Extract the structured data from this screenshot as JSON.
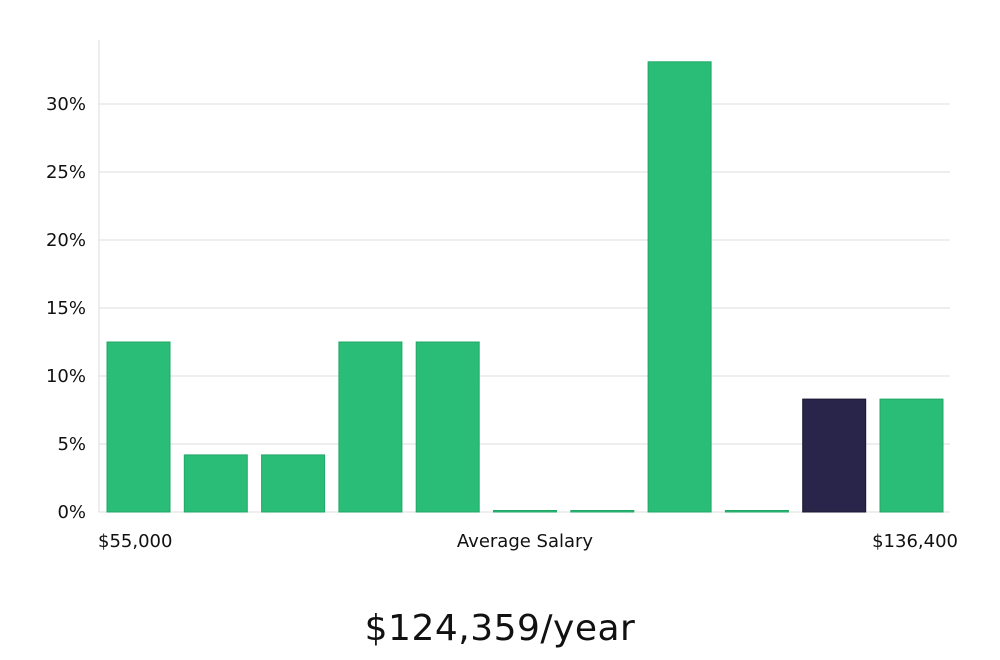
{
  "chart_data": {
    "type": "bar",
    "title": "",
    "xlabel": "Average Salary",
    "ylabel": "",
    "x_start_label": "$55,000",
    "x_end_label": "$136,400",
    "ylim": [
      0,
      35
    ],
    "yticks": [
      0,
      5,
      10,
      15,
      20,
      25,
      30
    ],
    "ytick_labels": [
      "0%",
      "5%",
      "10%",
      "15%",
      "20%",
      "25%",
      "30%"
    ],
    "grid": true,
    "values": [
      12.5,
      4.2,
      4.2,
      12.5,
      12.5,
      0,
      0,
      33.1,
      0,
      8.3,
      8.3
    ],
    "highlight_index": 9,
    "colors": {
      "bar": "#2abd77",
      "highlight": "#28244a",
      "grid": "#dcdcdc",
      "axis": "#dcdcdc"
    }
  },
  "salary": {
    "figure": "$124,359/year"
  }
}
